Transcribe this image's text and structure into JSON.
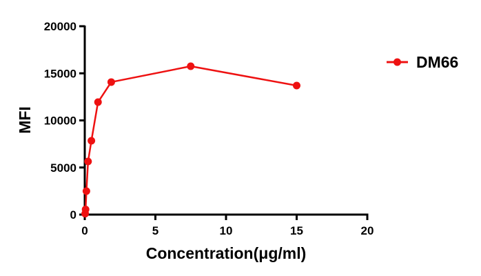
{
  "chart_data": {
    "type": "line",
    "title": "",
    "xlabel": "Concentration(μg/ml)",
    "ylabel": "MFI",
    "xlim": [
      0,
      20
    ],
    "ylim": [
      0,
      20000
    ],
    "xticks": [
      0,
      5,
      10,
      15,
      20
    ],
    "yticks": [
      0,
      5000,
      10000,
      15000,
      20000
    ],
    "grid": false,
    "legend_position": "right",
    "series": [
      {
        "name": "DM66",
        "color": "#ee1111",
        "marker": "circle",
        "x": [
          0.0293,
          0.0586,
          0.117,
          0.234,
          0.469,
          0.9375,
          1.875,
          7.5,
          15
        ],
        "y": [
          100,
          550,
          2490,
          5640,
          7840,
          11940,
          14070,
          15750,
          13700
        ]
      }
    ]
  },
  "axes": {
    "x_title": "Concentration(μg/ml)",
    "y_title": "MFI",
    "x_tick_labels": [
      "0",
      "5",
      "10",
      "15",
      "20"
    ],
    "y_tick_labels": [
      "0",
      "5000",
      "10000",
      "15000",
      "20000"
    ]
  },
  "legend": {
    "items": [
      {
        "label": "DM66",
        "color": "#ee1111"
      }
    ]
  }
}
